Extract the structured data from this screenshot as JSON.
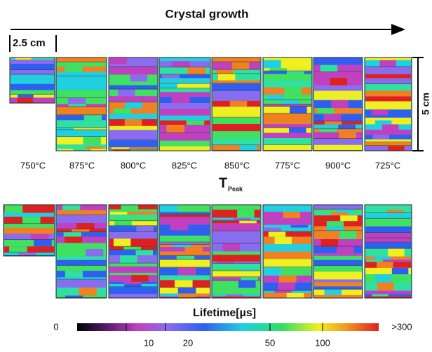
{
  "header": {
    "title": "Crystal growth",
    "scale_horizontal": "2.5 cm",
    "scale_vertical": "5 cm"
  },
  "temperatures": [
    "750°C",
    "875°C",
    "800°C",
    "825°C",
    "850°C",
    "775°C",
    "900°C",
    "725°C"
  ],
  "axis_label": {
    "symbol": "T",
    "subscript": "Peak"
  },
  "colorbar": {
    "title": "Lifetime[µs]",
    "min_label": 0,
    "max_label": ">300",
    "ticks": [
      10,
      20,
      50,
      100
    ]
  }
}
